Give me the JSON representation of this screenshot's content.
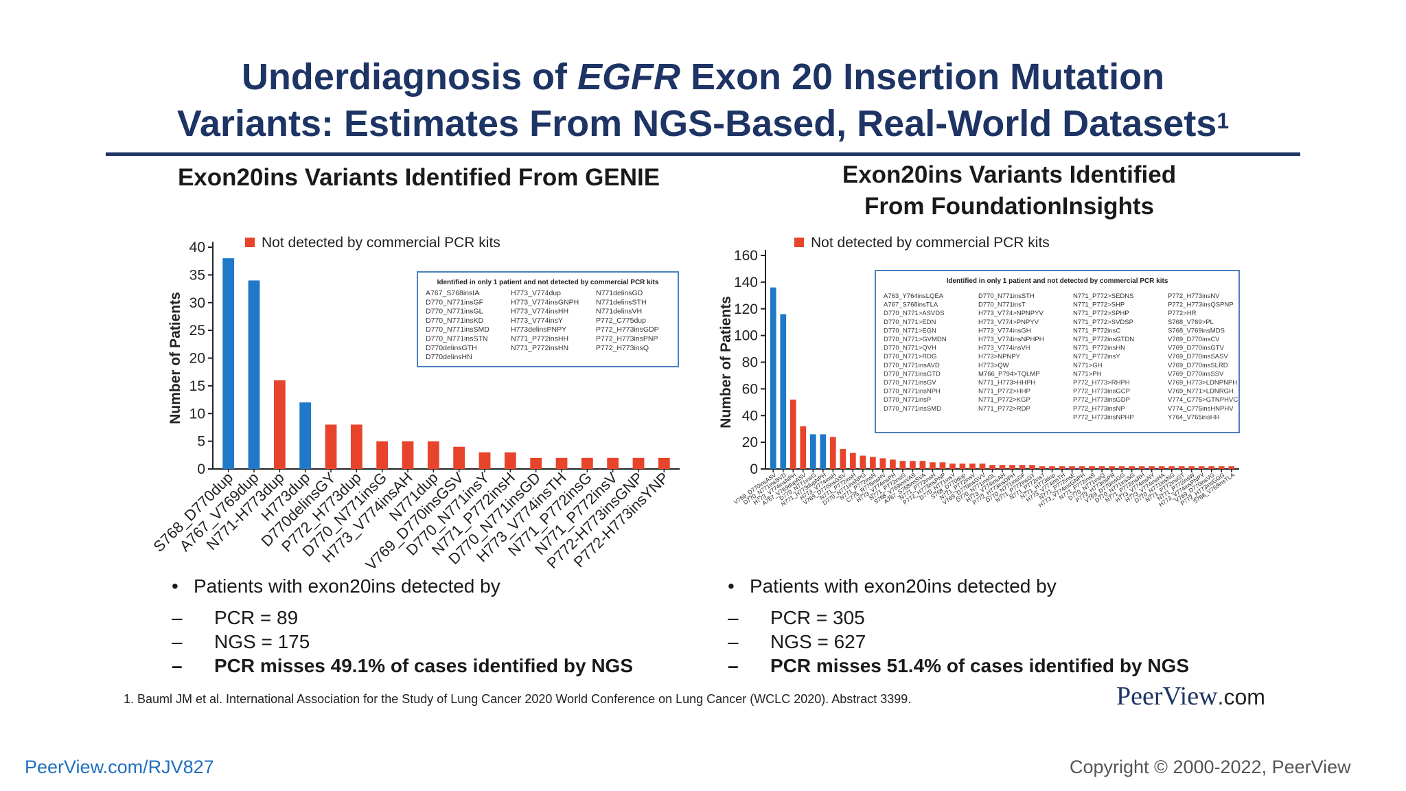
{
  "slide": {
    "title_part1": "Underdiagnosis of ",
    "title_italic": "EGFR",
    "title_part2": " Exon 20 Insertion Mutation",
    "title_line2": "Variants: Estimates From NGS-Based, Real-World Datasets",
    "title_sup": "1",
    "footnote": "1. Bauml JM et al. International Association for the Study of Lung Cancer 2020 World Conference on Lung Cancer (WCLC 2020). Abstract 3399.",
    "brand_name": "PeerView",
    "brand_domain": ".com",
    "url": "PeerView.com/RJV827",
    "copyright": "Copyright © 2000-2022, PeerView"
  },
  "colors": {
    "blue": "#1f78c8",
    "red": "#e8432b",
    "navy": "#1d3464",
    "box_border": "#4a7fbf"
  },
  "left": {
    "subtitle": "Exon20ins Variants Identified From GENIE",
    "bullet_main": "Patients with exon20ins detected by",
    "sub1": "PCR = 89",
    "sub2": "NGS = 175",
    "sub3": "PCR misses 49.1% of cases identified by NGS",
    "inset_title": "Identified in only 1 patient and not detected by commercial PCR kits",
    "inset_columns": [
      [
        "A767_S768insIA",
        "D770_N771insGF",
        "D770_N771insGL",
        "D770_N771insKD",
        "D770_N771insSMD",
        "D770_N771insSTN",
        "D770delinsGTH",
        "D770delinsHN"
      ],
      [
        "H773_V774dup",
        "H773_V774insGNPH",
        "H773_V774insHH",
        "H773_V774insY",
        "H773delinsPNPY",
        "N771_P772insHH",
        "N771_P772insHN"
      ],
      [
        "N771delinsGD",
        "N771delinsSTH",
        "N771delinsVH",
        "P772_C775dup",
        "P772_H773insGDP",
        "P772_H773insPNP",
        "P772_H773insQ"
      ]
    ]
  },
  "right": {
    "subtitle_line1": "Exon20ins Variants Identified",
    "subtitle_line2": "From FoundationInsights",
    "bullet_main": "Patients with exon20ins detected by",
    "sub1": "PCR = 305",
    "sub2": "NGS = 627",
    "sub3": "PCR misses 51.4% of cases identified by NGS",
    "inset_title": "Identified in only 1 patient and not detected by commercial PCR kits",
    "inset_columns": [
      [
        "A763_Y764insLQEA",
        "A767_S768insTLA",
        "D770_N771>ASVDS",
        "D770_N771>EDN",
        "D770_N771>EGN",
        "D770_N771>GVMDN",
        "D770_N771>QVH",
        "D770_N771>RDG",
        "D770_N771insAVD",
        "D770_N771insGTD",
        "D770_N771insGV",
        "D770_N771insNPH",
        "D770_N771insP",
        "D770_N771insSMD"
      ],
      [
        "D770_N771insSTH",
        "D770_N771insT",
        "H773_V774>NPNPYV",
        "H773_V774>PNPYV",
        "H773_V774insGH",
        "H773_V774insNPHPH",
        "H773_V774insVH",
        "H773>NPNPY",
        "H773>QW",
        "M766_P794>TQLMP",
        "N771_H773>HHPH",
        "N771_P772>HHP",
        "N771_P772>KGP",
        "N771_P772>RDP"
      ],
      [
        "N771_P772>SEDNS",
        "N771_P772>SHP",
        "N771_P772>SPHP",
        "N771_P772>SVDSP",
        "N771_P772insC",
        "N771_P772insGTDN",
        "N771_P772insHN",
        "N771_P772insY",
        "N771>GH",
        "N771>PH",
        "P772_H773>RHPH",
        "P772_H773insGCP",
        "P772_H773insGDP",
        "P772_H773insNP",
        "P772_H773insNPHP"
      ],
      [
        "P772_H773insNV",
        "P772_H773insQSPNP",
        "P772>HR",
        "S768_V769>PL",
        "S768_V769insMDS",
        "V769_D770insCV",
        "V769_D770insGTV",
        "V769_D770insSASV",
        "V769_D770insSLRD",
        "V769_D770insSSV",
        "V769_H773>LDNPNPH",
        "V769_N771>LDNRGH",
        "V774_C775>GTNPHVC",
        "V774_C775insHNPHV",
        "Y764_V765insHH"
      ]
    ]
  },
  "chart_data": [
    {
      "type": "bar",
      "legend": "Not detected by commercial PCR kits",
      "ylabel": "Number of Patients",
      "ylim": [
        0,
        40
      ],
      "yticks": [
        0,
        5,
        10,
        15,
        20,
        25,
        30,
        35,
        40
      ],
      "categories": [
        "S768_D770dup",
        "A767_V769dup",
        "N771-H773dup",
        "H773dup",
        "D770delinsGY",
        "P772_H773dup",
        "D770_N771insG",
        "H773_V774insAH",
        "N771dup",
        "V769_D770insGSV",
        "D770_N771insY",
        "N771_P772insH",
        "D770_N771insGD",
        "H773_V774insTH",
        "N771_P772insG",
        "N771_P772insV",
        "P772-H773insGNP",
        "P772-H773insYNP"
      ],
      "values": [
        38,
        34,
        16,
        12,
        8,
        8,
        5,
        5,
        5,
        4,
        3,
        3,
        2,
        2,
        2,
        2,
        2,
        2
      ],
      "detected_by_pcr": [
        true,
        true,
        false,
        true,
        false,
        false,
        false,
        false,
        false,
        false,
        false,
        false,
        false,
        false,
        false,
        false,
        false,
        false
      ]
    },
    {
      "type": "bar",
      "legend": "Not detected by commercial PCR kits",
      "ylabel": "Number of Patients",
      "ylim": [
        0,
        160
      ],
      "yticks": [
        0,
        20,
        40,
        60,
        80,
        100,
        120,
        140,
        160
      ],
      "categories": [
        "V769_D770insASV",
        "D770_N771insSVD",
        "H773_V774insNPH",
        "A767_V769dupASV",
        "D770_N771insG",
        "N771_H773dupNPH",
        "H773_V774insH",
        "V769_D770insGSV",
        "N771_P772insH",
        "D770_N771insNPG",
        "N771_P772insN",
        "C775_R776insHV",
        "H773_V774insPH",
        "N771_P772insG",
        "S768_V769insVAS",
        "A767_S768insSVA",
        "N771_P772insH",
        "P772_H773insPNP",
        "D770_N771insY",
        "S768_D770dup",
        "N771_P772insV",
        "V769_D770insGVV",
        "D770_N771insGL",
        "H773_V774insAH",
        "P772_H773insDPH",
        "D770_N771insGF",
        "N771_P772insGY",
        "N771_P772insT",
        "N771_H773dup",
        "H773_V774insTH",
        "N771_P772insE",
        "H773_V774insGNPH",
        "N771_P772insS",
        "D770_N771insQ",
        "P772_H773insPR",
        "V769_D770insGG",
        "D770_N771insSG",
        "N771_P772insRH",
        "H773_V774insNY",
        "H773_V774insHA",
        "D770_N771insNG",
        "N771_P772insGT",
        "N771_P772insW",
        "H773_V774insPNPY",
        "V769_D770insVG",
        "P772_H773insGGG",
        "S768_V769insTLA"
      ],
      "values": [
        136,
        116,
        52,
        32,
        26,
        26,
        24,
        15,
        12,
        10,
        9,
        8,
        7,
        6,
        6,
        6,
        5,
        5,
        4,
        4,
        4,
        4,
        3,
        3,
        3,
        3,
        3,
        2,
        2,
        2,
        2,
        2,
        2,
        2,
        2,
        2,
        2,
        2,
        2,
        2,
        2,
        2,
        2,
        2,
        2,
        2,
        2
      ],
      "detected_by_pcr": [
        true,
        true,
        false,
        false,
        true,
        true,
        false,
        false,
        false,
        false,
        false,
        false,
        false,
        false,
        false,
        false,
        false,
        false,
        false,
        false,
        false,
        false,
        false,
        false,
        false,
        false,
        false,
        false,
        false,
        false,
        false,
        false,
        false,
        false,
        false,
        false,
        false,
        false,
        false,
        false,
        false,
        false,
        false,
        false,
        false,
        false,
        false
      ]
    }
  ]
}
